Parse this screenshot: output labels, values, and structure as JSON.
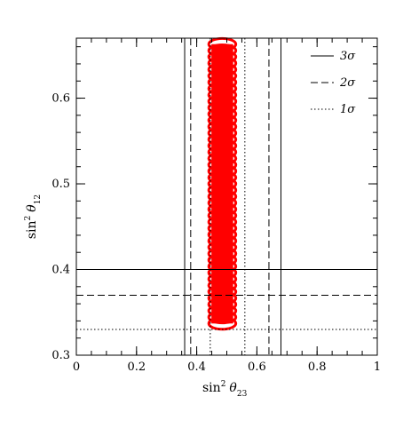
{
  "chart_data": {
    "type": "scatter",
    "xlim": [
      0,
      1
    ],
    "ylim": [
      0.3,
      0.67
    ],
    "x_ticks": [
      0,
      0.2,
      0.4,
      0.6,
      0.8,
      1
    ],
    "x_tick_labels": [
      "0",
      "0.2",
      "0.4",
      "0.6",
      "0.8",
      "1"
    ],
    "y_ticks": [
      0.3,
      0.4,
      0.5,
      0.6
    ],
    "y_tick_labels": [
      "0.3",
      "0.4",
      "0.5",
      "0.6"
    ],
    "xlabel": {
      "base": "sin",
      "sup": "2",
      "theta": "θ",
      "sub": "23"
    },
    "ylabel": {
      "base": "sin",
      "sup": "2",
      "theta": "θ",
      "sub": "12"
    },
    "grid": false,
    "legend_position": "top-right",
    "legend": [
      {
        "label": "3σ",
        "style": "solid"
      },
      {
        "label": "2σ",
        "style": "dashed"
      },
      {
        "label": "1σ",
        "style": "dotted"
      }
    ],
    "region": {
      "color": "#ff0000",
      "x_min": 0.44,
      "x_max": 0.53,
      "y_min": 0.337,
      "y_max": 0.663,
      "band_count": 44
    },
    "bounds": {
      "sin2_theta23": {
        "3sigma": [
          0.36,
          0.68
        ],
        "2sigma": [
          0.38,
          0.64
        ],
        "1sigma": [
          0.445,
          0.56
        ]
      },
      "sin2_theta12": {
        "3sigma": 0.4,
        "2sigma": 0.37,
        "1sigma": 0.33
      }
    }
  }
}
